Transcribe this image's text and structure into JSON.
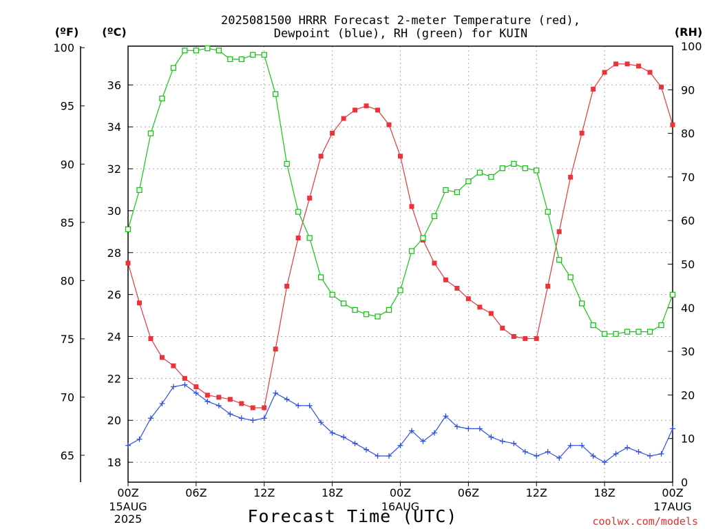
{
  "title_line1": "2025081500 HRRR Forecast 2-meter Temperature (red),",
  "title_line2": "Dewpoint (blue), RH (green) for KUIN",
  "unit_f": "(ºF)",
  "unit_c": "(ºC)",
  "unit_rh": "(RH)",
  "xlabel": "Forecast Time (UTC)",
  "credit": "coolwx.com/models",
  "date_labels": [
    {
      "tick": 0,
      "lines": [
        "15AUG",
        "2025"
      ]
    },
    {
      "tick": 4,
      "lines": [
        "16AUG"
      ]
    },
    {
      "tick": 8,
      "lines": [
        "17AUG"
      ]
    }
  ],
  "colors": {
    "temperature": "#e8343a",
    "dewpoint": "#2e4fe0",
    "rh": "#11c511",
    "grid": "#aaaaaa"
  },
  "chart_data": {
    "type": "line",
    "title": "2025081500 HRRR Forecast 2-meter Temperature (red), Dewpoint (blue), RH (green) for KUIN",
    "xlabel": "Forecast Time (UTC)",
    "x_hours": [
      0,
      1,
      2,
      3,
      4,
      5,
      6,
      7,
      8,
      9,
      10,
      11,
      12,
      13,
      14,
      15,
      16,
      17,
      18,
      19,
      20,
      21,
      22,
      23,
      24,
      25,
      26,
      27,
      28,
      29,
      30,
      31,
      32,
      33,
      34,
      35,
      36,
      37,
      38,
      39,
      40,
      41,
      42,
      43,
      44,
      45,
      46,
      47,
      48
    ],
    "x_ticks": [
      "00Z",
      "06Z",
      "12Z",
      "18Z",
      "00Z",
      "06Z",
      "12Z",
      "18Z",
      "00Z"
    ],
    "xlim": [
      0,
      48
    ],
    "y_left_celsius": {
      "ticks": [
        18,
        20,
        22,
        24,
        26,
        28,
        30,
        32,
        34,
        36
      ],
      "range": [
        17.05,
        37.85
      ]
    },
    "y_far_left_fahrenheit": {
      "ticks": [
        65,
        70,
        75,
        80,
        85,
        90,
        95,
        100
      ]
    },
    "y_right_rh": {
      "ticks": [
        0,
        10,
        20,
        30,
        40,
        50,
        60,
        70,
        80,
        90,
        100
      ],
      "range": [
        0,
        100
      ]
    },
    "grid": true,
    "series": [
      {
        "name": "Temperature (red)",
        "axis": "celsius",
        "marker": "filled-square",
        "values": [
          27.5,
          25.6,
          23.9,
          23.0,
          22.6,
          22.0,
          21.6,
          21.2,
          21.1,
          21.0,
          20.8,
          20.6,
          20.6,
          23.4,
          26.4,
          28.7,
          30.6,
          32.6,
          33.7,
          34.4,
          34.8,
          35.0,
          34.8,
          34.1,
          32.6,
          30.2,
          28.6,
          27.5,
          26.7,
          26.3,
          25.8,
          25.4,
          25.1,
          24.4,
          24.0,
          23.9,
          23.9,
          26.4,
          29.0,
          31.6,
          33.7,
          35.8,
          36.6,
          37.0,
          37.0,
          36.9,
          36.6,
          35.9,
          34.1
        ]
      },
      {
        "name": "Dewpoint (blue)",
        "axis": "celsius",
        "marker": "plus",
        "values": [
          18.8,
          19.1,
          20.1,
          20.8,
          21.6,
          21.7,
          21.3,
          20.9,
          20.7,
          20.3,
          20.1,
          20.0,
          20.1,
          21.3,
          21.0,
          20.7,
          20.7,
          19.9,
          19.4,
          19.2,
          18.9,
          18.6,
          18.3,
          18.3,
          18.8,
          19.5,
          19.0,
          19.4,
          20.2,
          19.7,
          19.6,
          19.6,
          19.2,
          19.0,
          18.9,
          18.5,
          18.3,
          18.5,
          18.2,
          18.8,
          18.8,
          18.3,
          18.0,
          18.4,
          18.7,
          18.5,
          18.3,
          18.4,
          19.6
        ]
      },
      {
        "name": "RH (green)",
        "axis": "rh",
        "marker": "open-square",
        "values": [
          58,
          67,
          80,
          88,
          95,
          99,
          99,
          99.5,
          99,
          97,
          97,
          98,
          98,
          89,
          73,
          62,
          56,
          47,
          43,
          41,
          39.5,
          38.5,
          38,
          39.5,
          44,
          53,
          56,
          61,
          67,
          66.5,
          69,
          71,
          70,
          72,
          73,
          72,
          71.5,
          62,
          51,
          47,
          41,
          36,
          34,
          34,
          34.5,
          34.5,
          34.5,
          36,
          43
        ]
      }
    ]
  }
}
